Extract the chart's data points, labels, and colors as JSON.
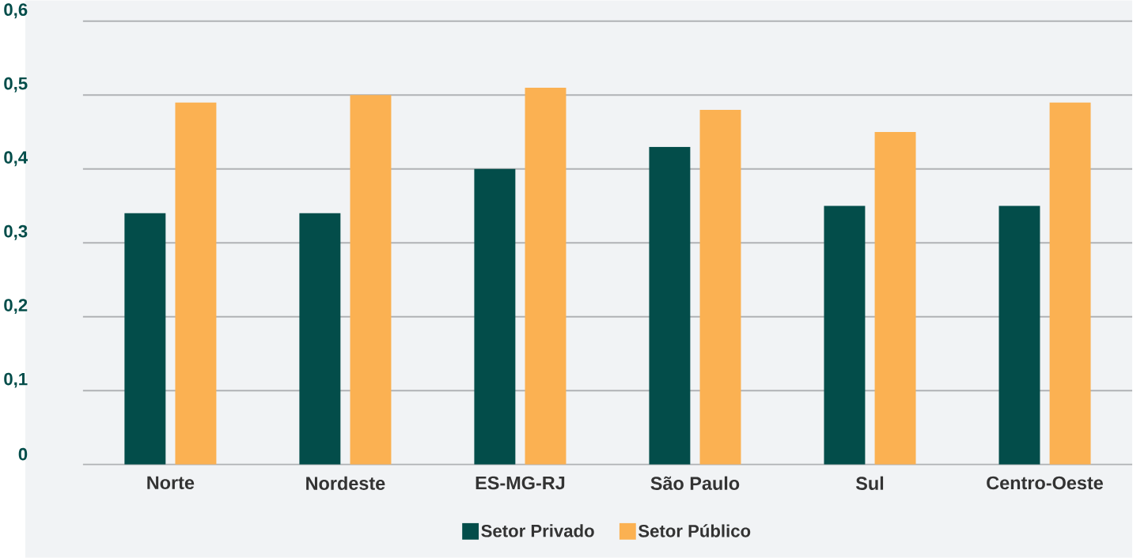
{
  "chart_data": {
    "type": "bar",
    "categories": [
      "Norte",
      "Nordeste",
      "ES-MG-RJ",
      "São Paulo",
      "Sul",
      "Centro-Oeste"
    ],
    "series": [
      {
        "name": "Setor Privado",
        "color": "#034d4a",
        "values": [
          0.34,
          0.34,
          0.4,
          0.43,
          0.35,
          0.35
        ]
      },
      {
        "name": "Setor Público",
        "color": "#fbb152",
        "values": [
          0.49,
          0.5,
          0.51,
          0.48,
          0.45,
          0.49
        ]
      }
    ],
    "ylim": [
      0,
      0.6
    ],
    "yticks": [
      0,
      {
        "value": 0.1,
        "label": "0,1"
      },
      {
        "value": 0.2,
        "label": "0,2"
      },
      {
        "value": 0.3,
        "label": "0,3"
      },
      {
        "value": 0.4,
        "label": "0,4"
      },
      {
        "value": 0.5,
        "label": "0,5"
      },
      {
        "value": 0.6,
        "label": "0,6"
      }
    ],
    "grid": "y",
    "legend": "bottom"
  }
}
